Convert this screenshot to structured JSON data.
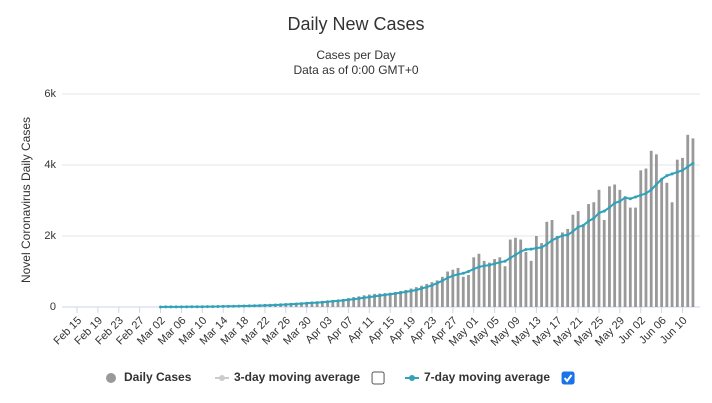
{
  "chart_data": {
    "type": "bar",
    "title": "Daily New Cases",
    "subtitle": [
      "Cases per Day",
      "Data as of 0:00 GMT+0"
    ],
    "y_label": "Novel Coronavirus Daily Cases",
    "ylim": [
      0,
      6000
    ],
    "yticks": [
      0,
      {
        "value": 2000,
        "label": "2k"
      },
      {
        "value": 4000,
        "label": "4k"
      },
      {
        "value": 6000,
        "label": "6k"
      }
    ],
    "grid": true,
    "categories": [
      "Feb 15",
      null,
      null,
      null,
      "Feb 19",
      null,
      null,
      null,
      "Feb 23",
      null,
      null,
      null,
      "Feb 27",
      null,
      null,
      null,
      "Mar 02",
      null,
      null,
      null,
      "Mar 06",
      null,
      null,
      null,
      "Mar 10",
      null,
      null,
      null,
      "Mar 14",
      null,
      null,
      null,
      "Mar 18",
      null,
      null,
      null,
      "Mar 22",
      null,
      null,
      null,
      "Mar 26",
      null,
      null,
      null,
      "Mar 30",
      null,
      null,
      null,
      "Apr 03",
      null,
      null,
      null,
      "Apr 07",
      null,
      null,
      null,
      "Apr 11",
      null,
      null,
      null,
      "Apr 15",
      null,
      null,
      null,
      "Apr 19",
      null,
      null,
      null,
      "Apr 23",
      null,
      null,
      null,
      "Apr 27",
      null,
      null,
      null,
      "May 01",
      null,
      null,
      null,
      "May 05",
      null,
      null,
      null,
      "May 09",
      null,
      null,
      null,
      "May 13",
      null,
      null,
      null,
      "May 17",
      null,
      null,
      null,
      "May 21",
      null,
      null,
      null,
      "May 25",
      null,
      null,
      null,
      "May 29",
      null,
      null,
      null,
      "Jun 02",
      null,
      null,
      null,
      "Jun 06",
      null,
      null,
      null,
      "Jun 10",
      null,
      null
    ],
    "series": [
      {
        "name": "Daily Cases",
        "color": "#999999",
        "kind": "bar",
        "values": [
          0,
          0,
          0,
          0,
          0,
          0,
          0,
          0,
          0,
          0,
          0,
          0,
          0,
          0,
          0,
          0,
          2,
          3,
          5,
          4,
          6,
          8,
          10,
          9,
          12,
          15,
          18,
          20,
          22,
          25,
          30,
          32,
          35,
          40,
          45,
          50,
          55,
          60,
          70,
          80,
          90,
          100,
          110,
          120,
          130,
          140,
          150,
          160,
          170,
          190,
          200,
          220,
          250,
          280,
          300,
          330,
          350,
          370,
          380,
          390,
          400,
          420,
          450,
          480,
          520,
          560,
          600,
          650,
          700,
          750,
          850,
          1000,
          1050,
          1100,
          850,
          900,
          1400,
          1500,
          1300,
          1250,
          1350,
          1400,
          1150,
          1900,
          1950,
          1900,
          1550,
          1300,
          2000,
          1800,
          2400,
          2450,
          2000,
          2100,
          2200,
          2600,
          2700,
          2300,
          2900,
          2950,
          3300,
          2450,
          3400,
          3450,
          3300,
          3100,
          2800,
          2800,
          3850,
          3900,
          4400,
          4300,
          3600,
          3500,
          2950,
          4150,
          4200,
          4850,
          4750
        ]
      },
      {
        "name": "7-day moving average",
        "color": "#31a2b8",
        "kind": "line",
        "values": [
          null,
          null,
          null,
          null,
          null,
          null,
          null,
          null,
          null,
          null,
          null,
          null,
          null,
          null,
          null,
          null,
          1,
          2,
          3,
          3,
          4,
          5,
          6,
          7,
          8,
          10,
          12,
          14,
          17,
          19,
          22,
          25,
          28,
          32,
          36,
          40,
          45,
          50,
          55,
          62,
          70,
          78,
          86,
          95,
          105,
          115,
          125,
          135,
          147,
          160,
          172,
          187,
          203,
          220,
          240,
          260,
          280,
          300,
          320,
          340,
          360,
          380,
          400,
          425,
          450,
          480,
          520,
          560,
          610,
          670,
          740,
          820,
          880,
          920,
          950,
          1000,
          1070,
          1130,
          1160,
          1180,
          1220,
          1260,
          1290,
          1380,
          1470,
          1560,
          1620,
          1630,
          1660,
          1680,
          1770,
          1880,
          1950,
          2010,
          2030,
          2130,
          2250,
          2300,
          2420,
          2500,
          2650,
          2700,
          2800,
          2930,
          2980,
          3080,
          3050,
          3100,
          3150,
          3200,
          3300,
          3450,
          3600,
          3700,
          3750,
          3800,
          3850,
          3950,
          4050
        ]
      }
    ],
    "legend": [
      {
        "label": "Daily Cases",
        "color": "#999999",
        "checked": null
      },
      {
        "label": "3-day moving average",
        "color": "#cccccc",
        "checked": false
      },
      {
        "label": "7-day moving average",
        "color": "#31a2b8",
        "checked": true
      }
    ]
  }
}
